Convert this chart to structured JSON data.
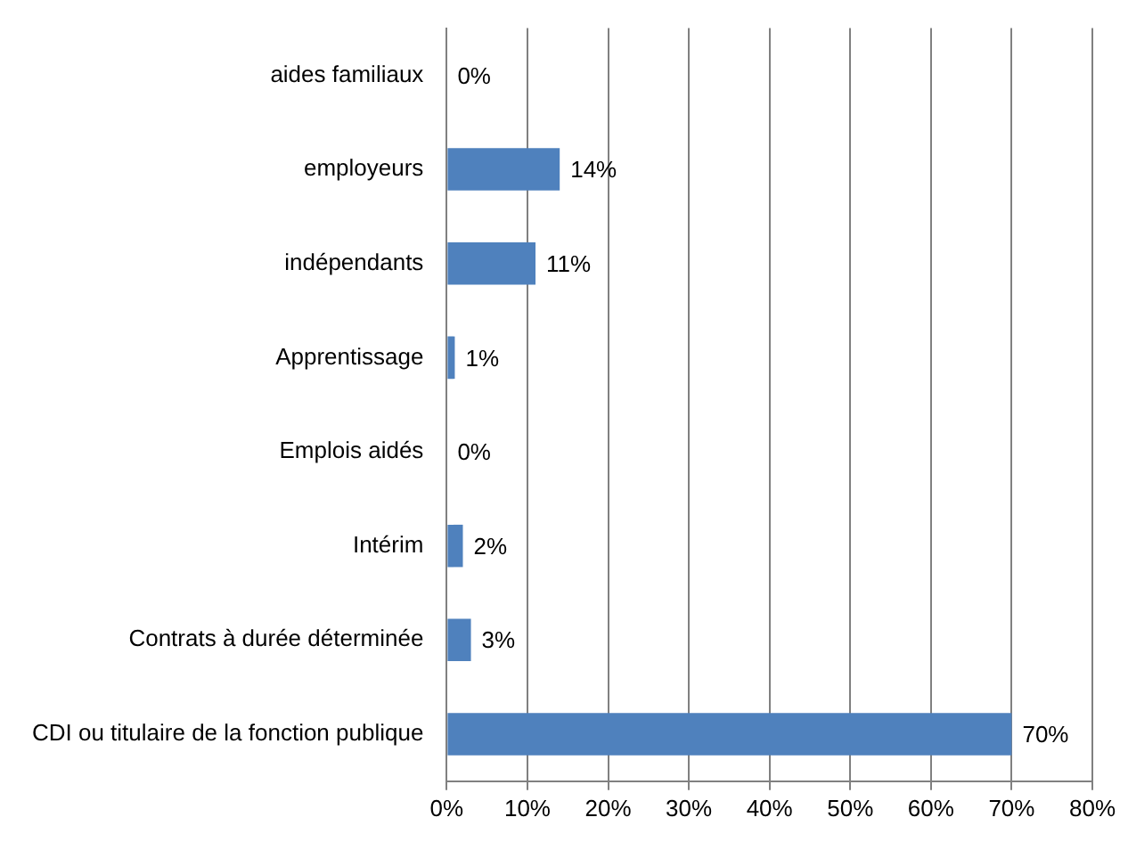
{
  "chart_data": {
    "type": "bar",
    "orientation": "horizontal",
    "categories": [
      "aides familiaux",
      "employeurs",
      "indépendants",
      "Apprentissage",
      "Emplois aidés",
      "Intérim",
      "Contrats à durée déterminée",
      "CDI ou titulaire de la fonction publique"
    ],
    "values": [
      0,
      14,
      11,
      1,
      0,
      2,
      3,
      70
    ],
    "value_labels": [
      "0%",
      "14%",
      "11%",
      "1%",
      "0%",
      "2%",
      "3%",
      "70%"
    ],
    "color": "#4f81bd",
    "xlim": [
      0,
      80
    ],
    "xticks": [
      {
        "value": 0,
        "label": "0%"
      },
      {
        "value": 10,
        "label": "10%"
      },
      {
        "value": 20,
        "label": "20%"
      },
      {
        "value": 30,
        "label": "30%"
      },
      {
        "value": 40,
        "label": "40%"
      },
      {
        "value": 50,
        "label": "50%"
      },
      {
        "value": 60,
        "label": "60%"
      },
      {
        "value": 70,
        "label": "70%"
      },
      {
        "value": 80,
        "label": "80%"
      }
    ],
    "grid": "x",
    "legend": false
  }
}
